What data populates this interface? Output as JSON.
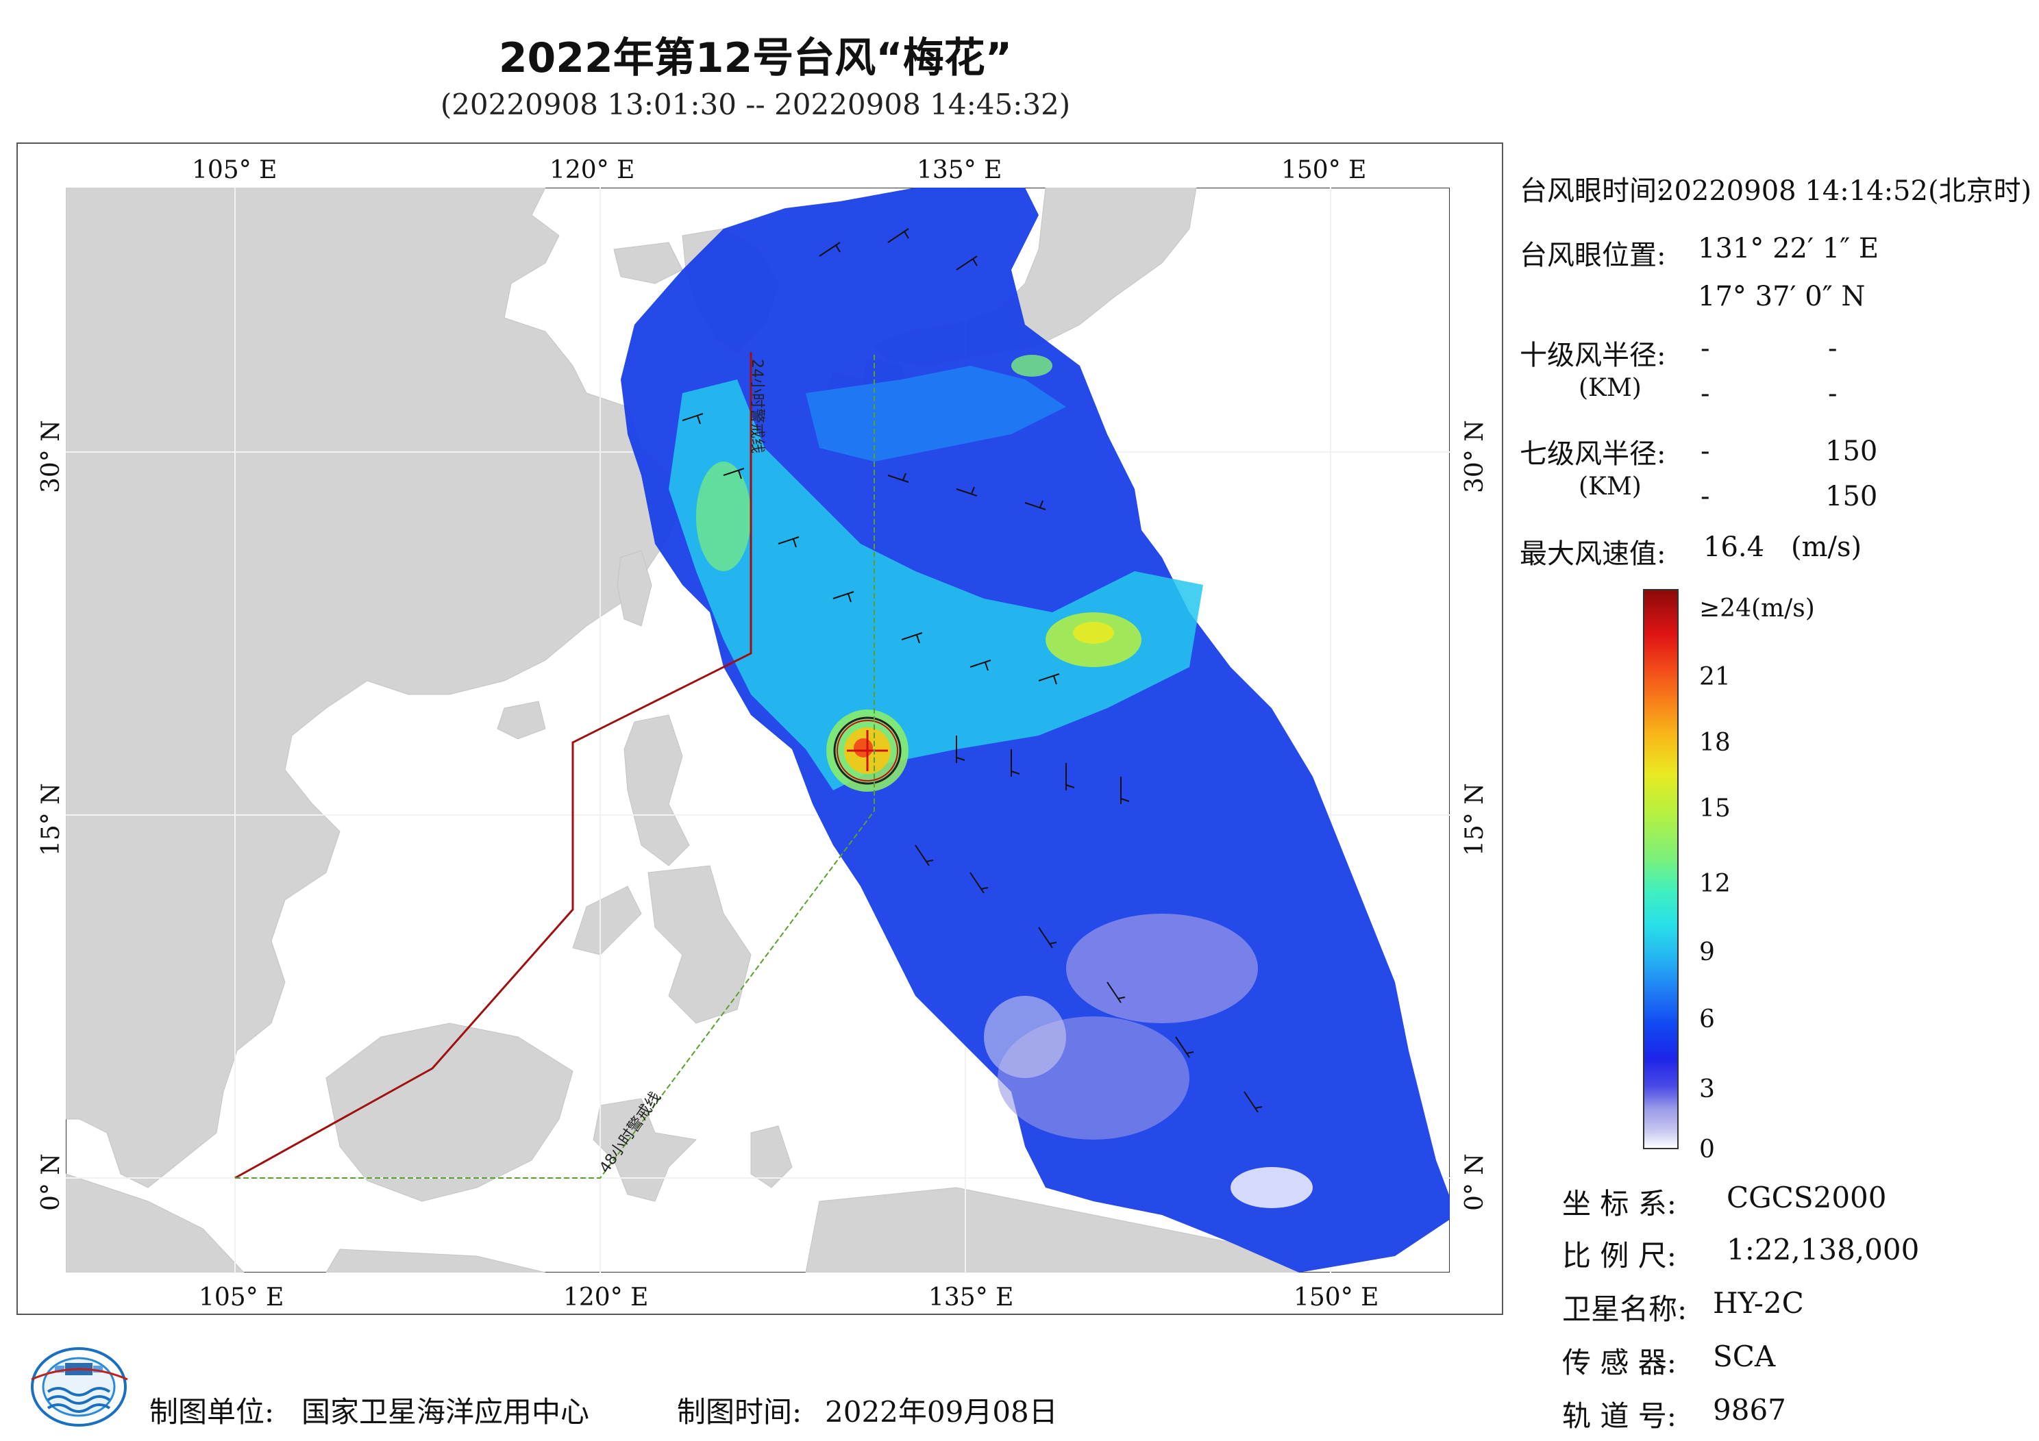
{
  "title": "2022年第12号台风“梅花”",
  "subtitle": "(20220908 13:01:30 -- 20220908 14:45:32)",
  "axes": {
    "top_lon": [
      "105° E",
      "120° E",
      "135° E",
      "150° E"
    ],
    "bottom_lon": [
      "105° E",
      "120° E",
      "135° E",
      "150° E"
    ],
    "left_lat": [
      "30° N",
      "15° N",
      "0° N"
    ],
    "right_lat": [
      "30° N",
      "15° N",
      "0° N"
    ]
  },
  "map_labels": {
    "warning_24h": "24小时警戒线",
    "warning_48h": "48小时警戒线"
  },
  "info": {
    "eye_time_label": "台风眼时间:",
    "eye_time_value": "20220908 14:14:52(北京时)",
    "eye_pos_label": "台风眼位置:",
    "eye_lon": "131° 22′ 1″ E",
    "eye_lat": "17° 37′ 0″ N",
    "r10_label": "十级风半径:",
    "r10_unit": "(KM)",
    "r10_values": [
      "-",
      "-",
      "-",
      "-"
    ],
    "r7_label": "七级风半径:",
    "r7_unit": "(KM)",
    "r7_values": [
      "-",
      "150",
      "-",
      "150"
    ],
    "max_wind_label": "最大风速值:",
    "max_wind_value": "16.4",
    "max_wind_unit": "(m/s)"
  },
  "colorbar": {
    "labels": [
      "≥24(m/s)",
      "21",
      "18",
      "15",
      "12",
      "9",
      "6",
      "3",
      "0"
    ]
  },
  "meta": {
    "crs_label": "坐 标 系:",
    "crs_value": "CGCS2000",
    "scale_label": "比 例 尺:",
    "scale_value": "1:22,138,000",
    "satellite_label": "卫星名称:",
    "satellite_value": "HY-2C",
    "sensor_label": "传 感 器:",
    "sensor_value": "SCA",
    "orbit_label": "轨 道 号:",
    "orbit_value": "9867"
  },
  "footer": {
    "unit_label": "制图单位:",
    "unit_value": "国家卫星海洋应用中心",
    "date_label": "制图时间:",
    "date_value": "2022年09月08日"
  },
  "colors": {
    "land": "#d3d3d3",
    "sea": "#ffffff",
    "warning_24h": "#a01010",
    "warning_48h": "#5aa02a"
  }
}
